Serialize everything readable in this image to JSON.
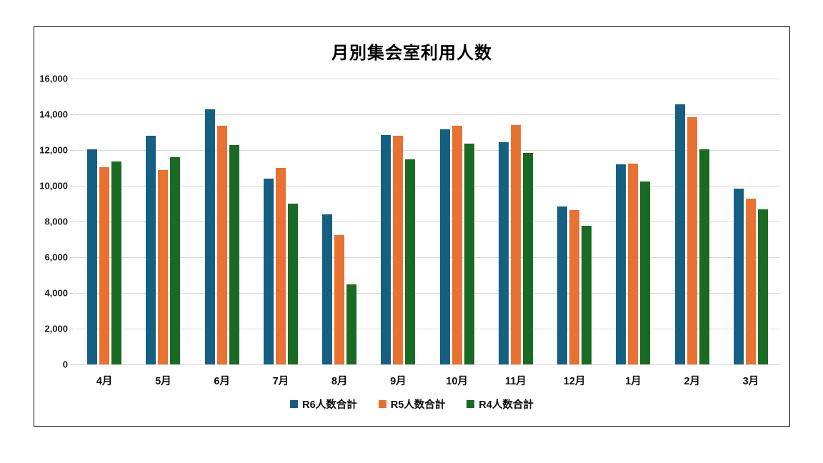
{
  "chart_data": {
    "type": "bar",
    "title": "月別集会室利用人数",
    "categories": [
      "4月",
      "5月",
      "6月",
      "7月",
      "8月",
      "9月",
      "10月",
      "11月",
      "12月",
      "1月",
      "2月",
      "3月"
    ],
    "series": [
      {
        "name": "R6人数合計",
        "color": "#156082",
        "values": [
          12050,
          12800,
          14300,
          10400,
          8400,
          12850,
          13150,
          12450,
          8850,
          11200,
          14550,
          9850
        ]
      },
      {
        "name": "R5人数合計",
        "color": "#E97132",
        "values": [
          11050,
          10900,
          13350,
          11000,
          7250,
          12800,
          13350,
          13400,
          8650,
          11250,
          13850,
          9300
        ]
      },
      {
        "name": "R4人数合計",
        "color": "#196B24",
        "values": [
          11350,
          11600,
          12300,
          9000,
          4500,
          11500,
          12350,
          11850,
          7750,
          10250,
          12050,
          8700
        ]
      }
    ],
    "xlabel": "",
    "ylabel": "",
    "ylim": [
      0,
      16000
    ],
    "ytick_step": 2000,
    "ytick_labels": [
      "0",
      "2,000",
      "4,000",
      "6,000",
      "8,000",
      "10,000",
      "12,000",
      "14,000",
      "16,000"
    ],
    "grid": "horizontal",
    "grid_color": "#D9D9D9",
    "legend_position": "bottom",
    "frame_border_color": "#000000",
    "background_color": "#FFFFFF"
  }
}
